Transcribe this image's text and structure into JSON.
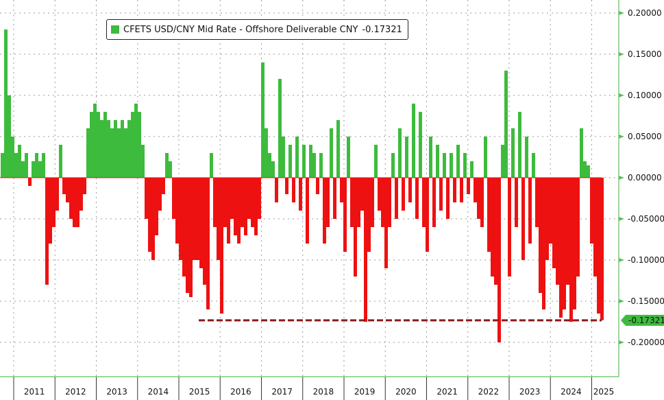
{
  "chart_data": {
    "type": "bar",
    "title": "",
    "legend": {
      "label": "CFETS USD/CNY Mid Rate - Offshore Deliverable CNY",
      "last_value": "-0.17321",
      "placement": "top-left"
    },
    "xlabel": "",
    "ylabel": "",
    "ylim": [
      -0.24,
      0.215
    ],
    "y_ticks": [
      "0.20000",
      "0.15000",
      "0.10000",
      "0.05000",
      "0.00000",
      "-0.05000",
      "-0.10000",
      "-0.15000",
      "-0.20000"
    ],
    "y_tick_values": [
      0.2,
      0.15,
      0.1,
      0.05,
      0,
      -0.05,
      -0.1,
      -0.15,
      -0.2
    ],
    "x_ticks": [
      "2011",
      "2012",
      "2013",
      "2014",
      "2015",
      "2016",
      "2017",
      "2018",
      "2019",
      "2020",
      "2021",
      "2022",
      "2023",
      "2024",
      "2025"
    ],
    "current_value_label": "-0.17321",
    "current_value": -0.17321,
    "reference_line": {
      "value": -0.17321,
      "style": "dashed",
      "from_year": "2015"
    },
    "series_start": "late 2010",
    "series_end": "early 2025",
    "values": [
      0.03,
      0.18,
      0.1,
      0.05,
      0.03,
      0.04,
      0.02,
      0.03,
      -0.01,
      0.02,
      0.03,
      0.02,
      0.03,
      -0.13,
      -0.08,
      -0.06,
      -0.04,
      0.04,
      -0.02,
      -0.03,
      -0.05,
      -0.06,
      -0.06,
      -0.04,
      -0.02,
      0.06,
      0.08,
      0.09,
      0.08,
      0.07,
      0.08,
      0.07,
      0.06,
      0.07,
      0.06,
      0.07,
      0.06,
      0.07,
      0.08,
      0.09,
      0.08,
      0.04,
      -0.05,
      -0.09,
      -0.1,
      -0.07,
      -0.04,
      -0.02,
      0.03,
      0.02,
      -0.05,
      -0.08,
      -0.1,
      -0.12,
      -0.14,
      -0.145,
      -0.1,
      -0.1,
      -0.11,
      -0.13,
      -0.16,
      0.03,
      -0.06,
      -0.1,
      -0.165,
      -0.06,
      -0.08,
      -0.05,
      -0.07,
      -0.08,
      -0.06,
      -0.07,
      -0.05,
      -0.06,
      -0.07,
      -0.05,
      0.14,
      0.06,
      0.03,
      0.02,
      -0.03,
      0.12,
      0.05,
      -0.02,
      0.04,
      -0.03,
      0.05,
      -0.04,
      0.04,
      -0.08,
      0.04,
      0.03,
      -0.02,
      0.03,
      -0.08,
      -0.06,
      0.06,
      -0.05,
      0.07,
      -0.03,
      -0.09,
      0.05,
      -0.06,
      -0.12,
      -0.06,
      -0.04,
      -0.175,
      -0.09,
      -0.06,
      0.04,
      -0.04,
      -0.06,
      -0.11,
      -0.06,
      0.03,
      -0.05,
      0.06,
      -0.04,
      0.05,
      -0.03,
      0.09,
      -0.05,
      0.08,
      -0.06,
      -0.09,
      0.05,
      -0.06,
      0.04,
      -0.04,
      0.03,
      -0.05,
      0.03,
      -0.03,
      0.04,
      -0.03,
      0.03,
      -0.02,
      0.02,
      -0.03,
      -0.05,
      -0.06,
      0.05,
      -0.09,
      -0.12,
      -0.13,
      -0.2,
      0.04,
      0.13,
      -0.12,
      0.06,
      -0.06,
      0.08,
      -0.1,
      0.05,
      -0.08,
      0.03,
      -0.06,
      -0.14,
      -0.16,
      -0.1,
      -0.08,
      -0.11,
      -0.13,
      -0.17,
      -0.16,
      -0.13,
      -0.175,
      -0.16,
      -0.12,
      0.06,
      0.02,
      0.015,
      -0.08,
      -0.12,
      -0.165,
      -0.173
    ],
    "colors": {
      "positive": "#3dbb3d",
      "negative": "#ee1111",
      "reference": "#8b1a1a",
      "axis": "#5cbf5c"
    }
  }
}
